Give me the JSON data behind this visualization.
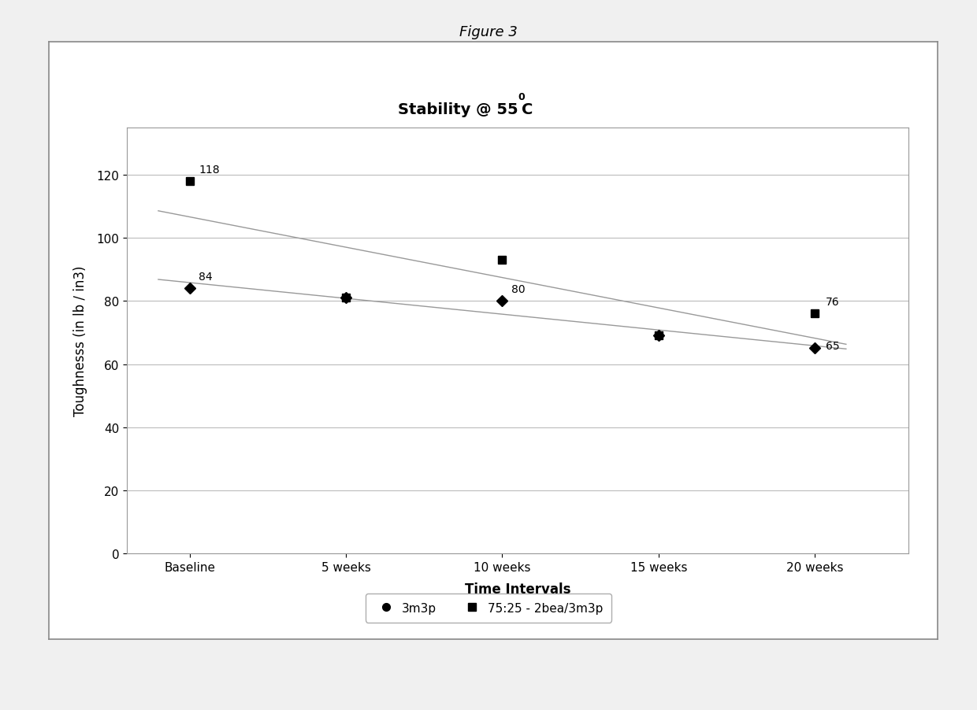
{
  "title_line1": "Stability @ 55",
  "title_sup": "0",
  "title_line2": "C",
  "super_title": "Figure 3",
  "xlabel": "Time Intervals",
  "ylabel": "Toughnesss (in lb / in3)",
  "x_labels": [
    "Baseline",
    "5 weeks",
    "10 weeks",
    "15 weeks",
    "20 weeks"
  ],
  "x_values": [
    0,
    1,
    2,
    3,
    4
  ],
  "series1_name": "◆3m3p",
  "series1_label": "3m3p",
  "series1_values": [
    84,
    81,
    80,
    69,
    65
  ],
  "series1_marker": "D",
  "series2_name": "75:25 - 2bea/3m3p",
  "series2_label": "75:25 - 2bea/3m3p",
  "series2_values": [
    118,
    81,
    93,
    69,
    76
  ],
  "series2_marker": "s",
  "annotations1_vals": [
    84,
    null,
    80,
    null,
    65
  ],
  "annotations1_offsets": [
    [
      0.06,
      2
    ],
    [
      0,
      0
    ],
    [
      0.06,
      2
    ],
    [
      0,
      0
    ],
    [
      0.07,
      -1
    ]
  ],
  "annotations2_vals": [
    118,
    null,
    null,
    null,
    76
  ],
  "annotations2_offsets": [
    [
      0.06,
      2
    ],
    [
      0,
      0
    ],
    [
      0,
      0
    ],
    [
      0,
      0
    ],
    [
      0.07,
      2
    ]
  ],
  "ylim": [
    0,
    135
  ],
  "yticks": [
    0,
    20,
    40,
    60,
    80,
    100,
    120
  ],
  "xlim": [
    -0.4,
    4.6
  ],
  "grid_color": "#bbbbbb",
  "trendline_color": "#999999",
  "marker_color": "#000000",
  "bg_color": "#ffffff",
  "outer_bg": "#f0f0f0",
  "title_fontsize": 14,
  "label_fontsize": 12,
  "tick_fontsize": 11,
  "annotation_fontsize": 10,
  "legend_fontsize": 11,
  "super_title_fontsize": 13
}
